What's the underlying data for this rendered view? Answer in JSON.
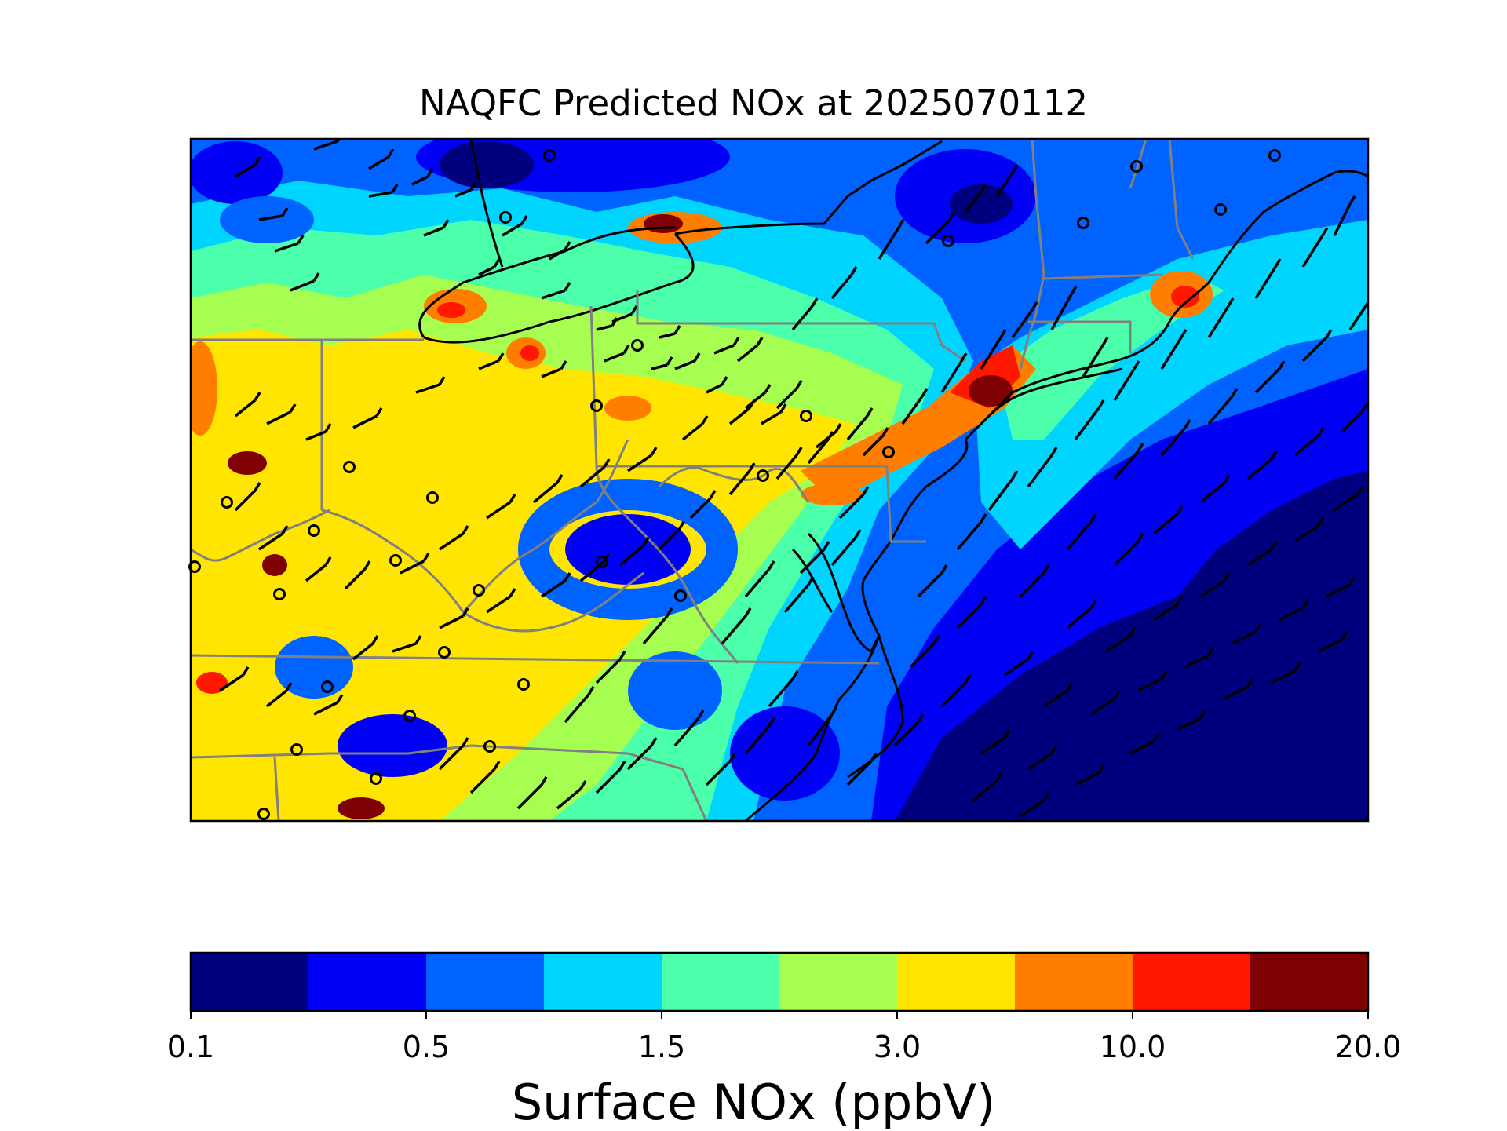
{
  "title": "NAQFC Predicted NOx at 2025070112",
  "colorbar": {
    "label": "Surface NOx (ppbV)",
    "tick_labels": [
      "0.1",
      "0.5",
      "1.5",
      "3.0",
      "10.0",
      "20.0"
    ],
    "colors": [
      "#00007f",
      "#0000f5",
      "#0062ff",
      "#00d5ff",
      "#4cffaa",
      "#a6ff50",
      "#ffe500",
      "#ff7e00",
      "#ff1700",
      "#7f0000"
    ]
  },
  "map": {
    "region": "northeastern-us",
    "layers": [
      "nox-concentration",
      "coastlines",
      "state-borders",
      "wind-barbs",
      "monitoring-sites"
    ]
  }
}
